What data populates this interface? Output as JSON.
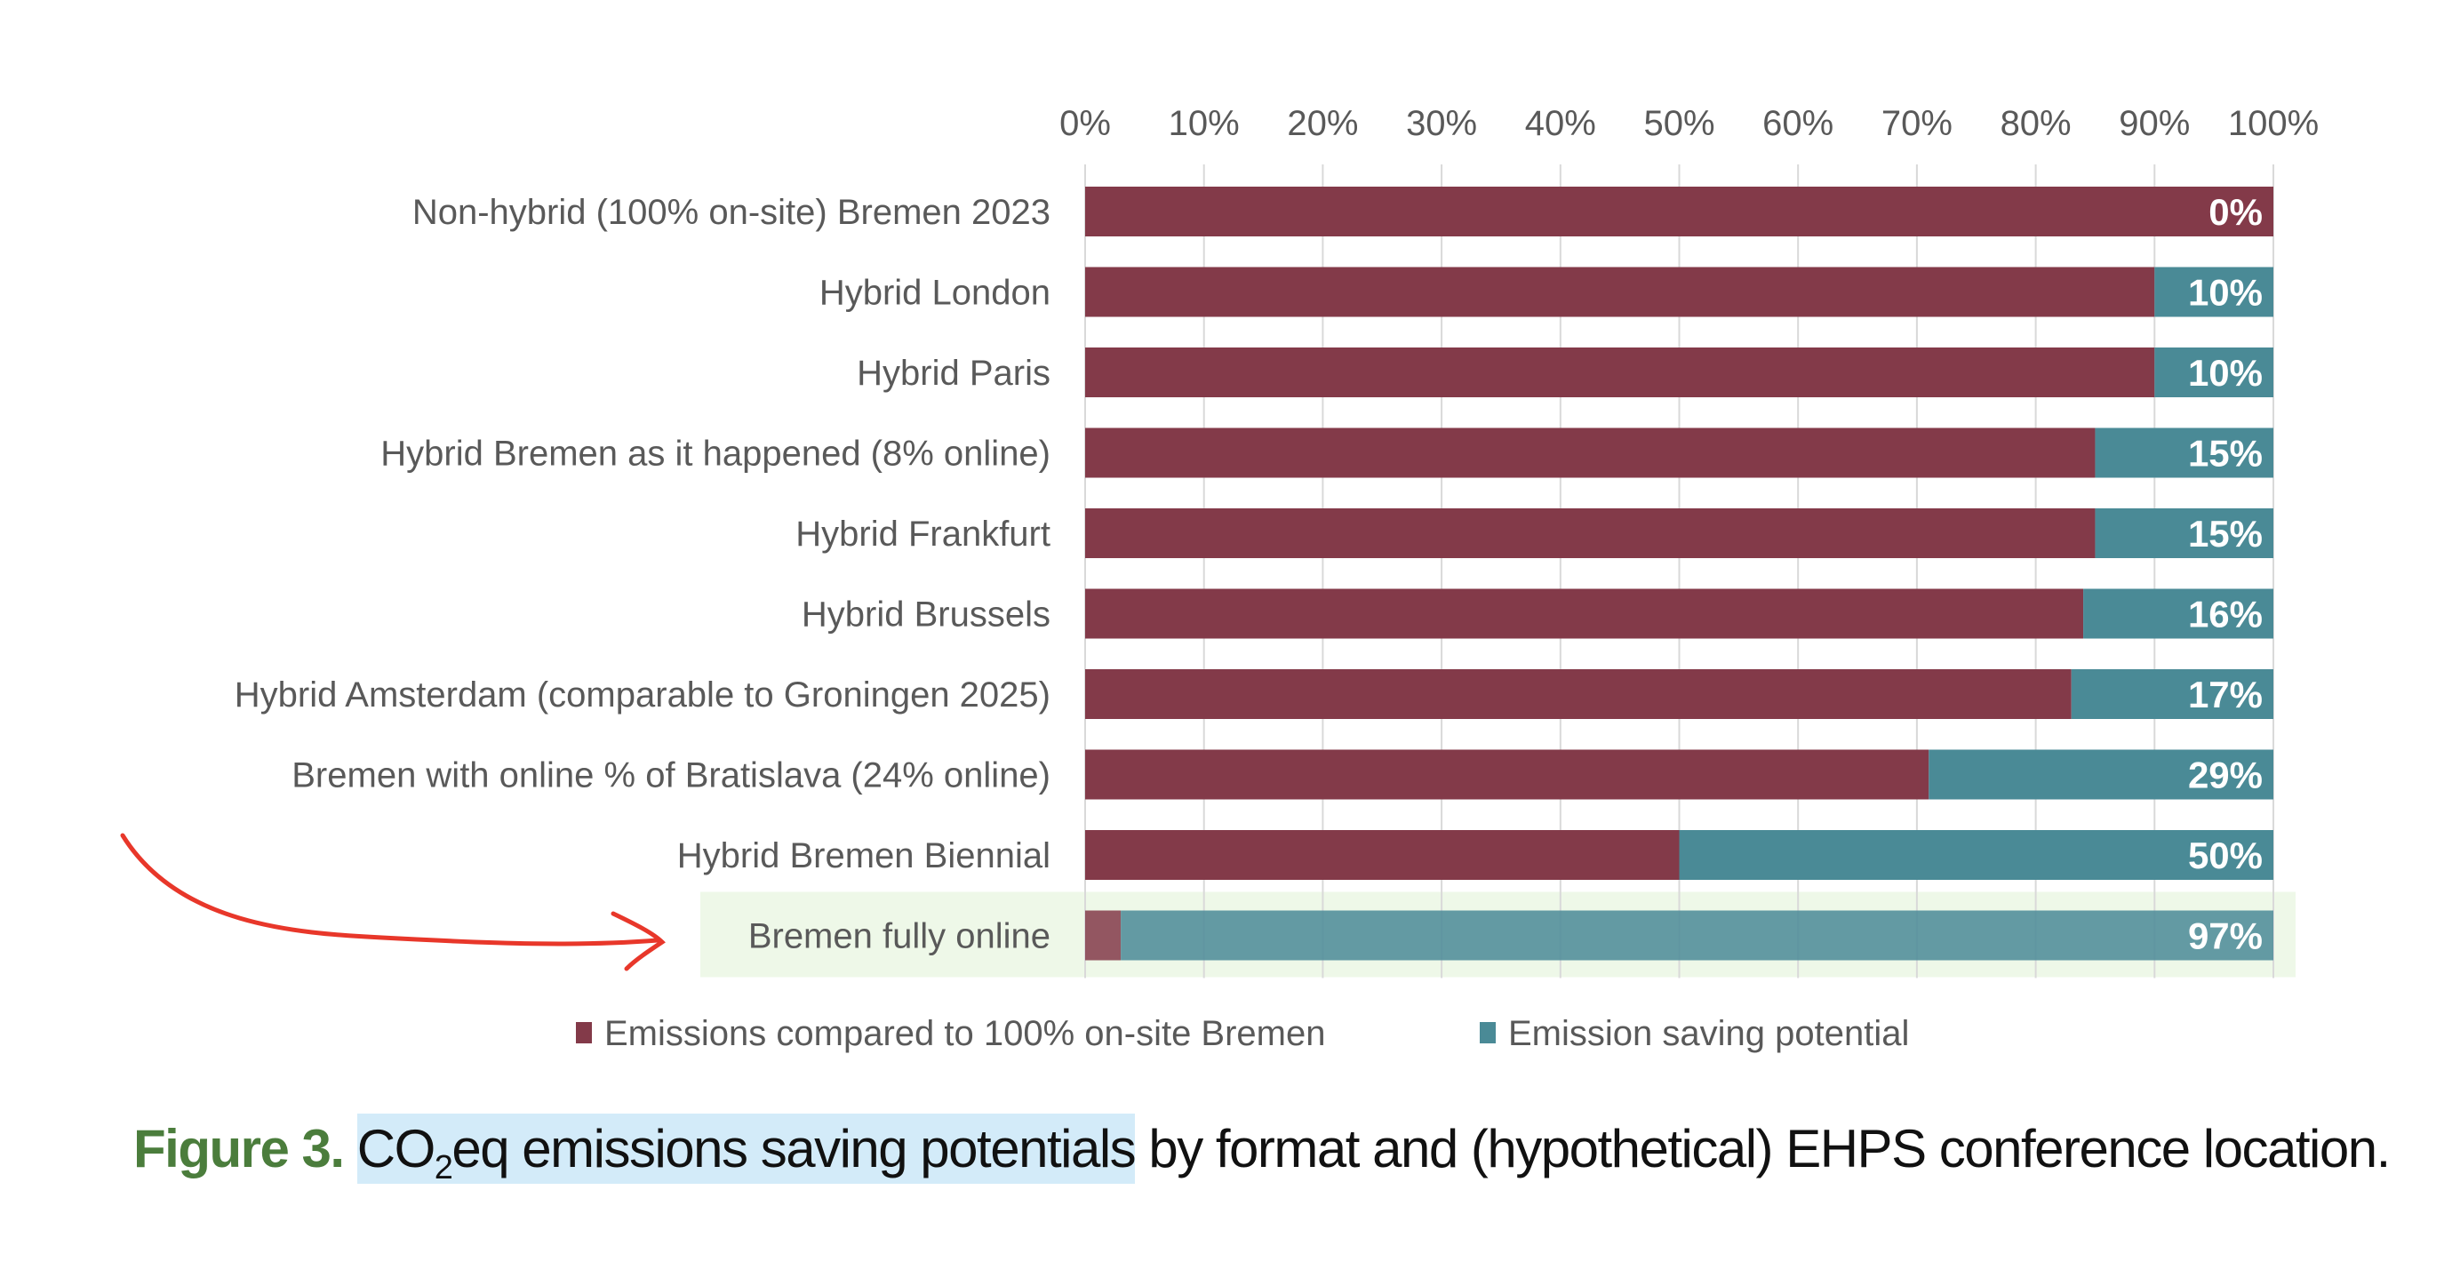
{
  "chart_data": {
    "type": "bar",
    "orientation": "horizontal",
    "stacked": "100%",
    "categories": [
      "Non-hybrid (100% on-site) Bremen 2023",
      "Hybrid London",
      "Hybrid Paris",
      "Hybrid Bremen as it happened (8% online)",
      "Hybrid Frankfurt",
      "Hybrid Brussels",
      "Hybrid Amsterdam (comparable to Groningen 2025)",
      "Bremen with online % of Bratislava (24% online)",
      "Hybrid Bremen Biennial",
      "Bremen fully online"
    ],
    "series": [
      {
        "name": "Emissions compared to 100% on-site Bremen",
        "color": "#833a49",
        "values": [
          100,
          90,
          90,
          85,
          85,
          84,
          83,
          71,
          50,
          3
        ]
      },
      {
        "name": "Emission saving potential",
        "color": "#4a8a96",
        "values": [
          0,
          10,
          10,
          15,
          15,
          16,
          17,
          29,
          50,
          97
        ]
      }
    ],
    "data_labels": [
      "0%",
      "10%",
      "10%",
      "15%",
      "15%",
      "16%",
      "17%",
      "29%",
      "50%",
      "97%"
    ],
    "x_ticks": [
      "0%",
      "10%",
      "20%",
      "30%",
      "40%",
      "50%",
      "60%",
      "70%",
      "80%",
      "90%",
      "100%"
    ],
    "xlim": [
      0,
      100
    ],
    "x_axis_position": "top",
    "grid": true,
    "legend_position": "bottom",
    "highlighted_category": "Bremen fully online",
    "highlight_color": "#eef8e8",
    "annotation": "red hand-drawn arrow pointing at Bremen fully online",
    "annotation_color": "#e8372a"
  },
  "caption": {
    "figure_label": "Figure 3.",
    "highlighted_pre": "CO",
    "highlighted_sub": "2",
    "highlighted_post": "eq emissions saving potentials",
    "rest": " by format and (hypothetical) EHPS conference location.",
    "label_color": "#4b7d3c",
    "highlight_color": "#d3ebf9"
  }
}
